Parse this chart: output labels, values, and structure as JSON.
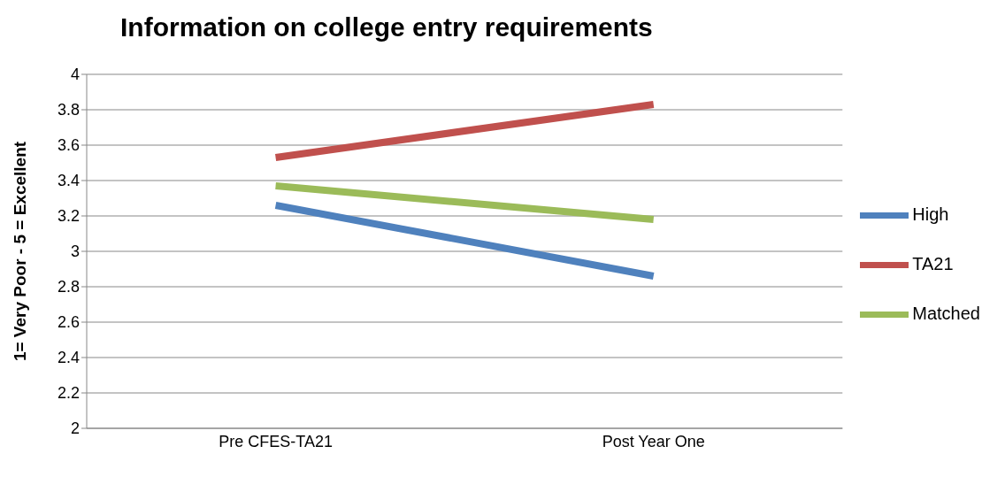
{
  "chart_data": {
    "type": "line",
    "title": "Information on college entry requirements",
    "ylabel": "1= Very Poor - 5 = Excellent",
    "categories": [
      "Pre CFES-TA21",
      "Post Year One"
    ],
    "series": [
      {
        "name": "High",
        "color": "#4f81bd",
        "values": [
          3.26,
          2.86
        ]
      },
      {
        "name": "TA21",
        "color": "#c0504d",
        "values": [
          3.53,
          3.83
        ]
      },
      {
        "name": "Matched",
        "color": "#9bbb59",
        "values": [
          3.37,
          3.18
        ]
      }
    ],
    "ylim": [
      2,
      4
    ],
    "yticks": [
      2,
      2.2,
      2.4,
      2.6,
      2.8,
      3,
      3.2,
      3.4,
      3.6,
      3.8,
      4
    ],
    "grid": "y",
    "legend": "right",
    "marker": "none",
    "line_style": "solid"
  }
}
